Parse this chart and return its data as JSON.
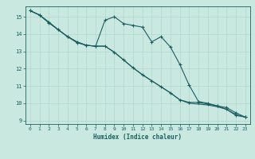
{
  "xlabel": "Humidex (Indice chaleur)",
  "ylabel": "",
  "background_color": "#c8e8e0",
  "grid_color": "#b0d8d0",
  "line_color": "#1a6060",
  "xlim": [
    -0.5,
    23.5
  ],
  "ylim": [
    8.8,
    15.6
  ],
  "yticks": [
    9,
    10,
    11,
    12,
    13,
    14,
    15
  ],
  "xticks": [
    0,
    1,
    2,
    3,
    4,
    5,
    6,
    7,
    8,
    9,
    10,
    11,
    12,
    13,
    14,
    15,
    16,
    17,
    18,
    19,
    20,
    21,
    22,
    23
  ],
  "series1_x": [
    0,
    1,
    2,
    3,
    4,
    5,
    6,
    7,
    8,
    9,
    10,
    11,
    12,
    13,
    14,
    15,
    16,
    17,
    18,
    19,
    20,
    21,
    22,
    23
  ],
  "series1_y": [
    15.35,
    15.1,
    14.7,
    14.25,
    13.85,
    13.5,
    13.35,
    13.3,
    14.8,
    15.0,
    14.6,
    14.5,
    14.4,
    13.55,
    13.85,
    13.25,
    12.25,
    11.05,
    10.1,
    10.0,
    9.85,
    9.65,
    9.3,
    9.2
  ],
  "series2_x": [
    0,
    1,
    2,
    3,
    4,
    5,
    6,
    7,
    8,
    9,
    10,
    11,
    12,
    13,
    14,
    15,
    16,
    17,
    18,
    19,
    20,
    21,
    22,
    23
  ],
  "series2_y": [
    15.35,
    15.1,
    14.65,
    14.25,
    13.85,
    13.55,
    13.35,
    13.3,
    13.3,
    12.95,
    12.5,
    12.05,
    11.65,
    11.3,
    10.95,
    10.6,
    10.2,
    10.05,
    10.05,
    9.95,
    9.85,
    9.75,
    9.45,
    9.2
  ],
  "series3_x": [
    0,
    1,
    2,
    3,
    4,
    5,
    6,
    7,
    8,
    9,
    10,
    11,
    12,
    13,
    14,
    15,
    16,
    17,
    18,
    19,
    20,
    21,
    22,
    23
  ],
  "series3_y": [
    15.35,
    15.1,
    14.65,
    14.25,
    13.85,
    13.55,
    13.35,
    13.3,
    13.3,
    12.95,
    12.5,
    12.05,
    11.65,
    11.3,
    10.95,
    10.6,
    10.2,
    10.0,
    9.95,
    9.9,
    9.8,
    9.65,
    9.35,
    9.2
  ]
}
